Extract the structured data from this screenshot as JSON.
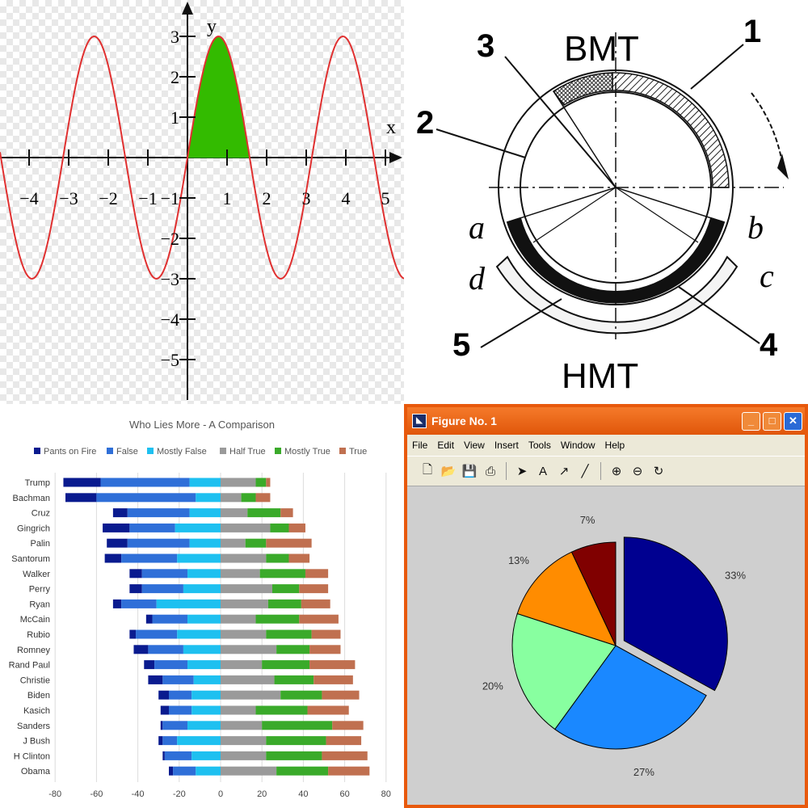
{
  "sine_panel": {
    "axis_x_label": "x",
    "axis_y_label": "y",
    "x_ticks": [
      "−4",
      "−3",
      "−2",
      "−1",
      "1",
      "2",
      "3",
      "4",
      "5"
    ],
    "y_ticks": [
      "3",
      "2",
      "1",
      "−1",
      "−2",
      "−3",
      "−4",
      "−5"
    ],
    "colors": {
      "curve": "#e03030",
      "fill": "#33bb00"
    }
  },
  "engine_panel": {
    "labels": {
      "n1": "1",
      "n2": "2",
      "n3": "3",
      "n4": "4",
      "n5": "5",
      "bmt": "BMT",
      "hmt": "HMT",
      "a": "a",
      "b": "b",
      "c": "c",
      "d": "d"
    }
  },
  "bar_panel": {
    "chart_data": {
      "type": "bar",
      "orientation": "horizontal-stacked-diverging",
      "title": "Who Lies More - A Comparison",
      "legend": [
        "Pants on Fire",
        "False",
        "Mostly False",
        "Half True",
        "Mostly True",
        "True"
      ],
      "colors": [
        "#0a1b8f",
        "#2f6fd8",
        "#1ec0f0",
        "#9a9a9a",
        "#3aaa2a",
        "#c07050"
      ],
      "x_ticks": [
        "-80",
        "-60",
        "-40",
        "-20",
        "0",
        "20",
        "40",
        "60",
        "80"
      ],
      "xlim": [
        -80,
        80
      ],
      "legend_position": "top",
      "categories": [
        "Trump",
        "Bachman",
        "Cruz",
        "Gingrich",
        "Palin",
        "Santorum",
        "Walker",
        "Perry",
        "Ryan",
        "McCain",
        "Rubio",
        "Romney",
        "Rand Paul",
        "Christie",
        "Biden",
        "Kasich",
        "Sanders",
        "J Bush",
        "H Clinton",
        "Obama"
      ],
      "series": [
        {
          "name": "Pants on Fire",
          "values": [
            18,
            15,
            7,
            13,
            10,
            8,
            6,
            6,
            4,
            3,
            3,
            7,
            5,
            7,
            5,
            4,
            1,
            2,
            1,
            2
          ]
        },
        {
          "name": "False",
          "values": [
            43,
            48,
            30,
            22,
            30,
            27,
            22,
            20,
            17,
            17,
            20,
            17,
            16,
            15,
            11,
            11,
            12,
            7,
            13,
            11
          ]
        },
        {
          "name": "Mostly False",
          "values": [
            15,
            12,
            15,
            22,
            15,
            21,
            16,
            18,
            31,
            16,
            21,
            18,
            16,
            13,
            14,
            14,
            16,
            21,
            14,
            12
          ]
        },
        {
          "name": "Half True",
          "values": [
            17,
            10,
            13,
            24,
            12,
            22,
            19,
            25,
            23,
            17,
            22,
            27,
            20,
            26,
            29,
            17,
            20,
            22,
            22,
            27
          ]
        },
        {
          "name": "Mostly True",
          "values": [
            5,
            7,
            16,
            9,
            10,
            11,
            22,
            13,
            16,
            21,
            22,
            16,
            23,
            19,
            20,
            25,
            34,
            29,
            27,
            25
          ]
        },
        {
          "name": "True",
          "values": [
            2,
            7,
            6,
            8,
            22,
            10,
            11,
            14,
            14,
            19,
            14,
            15,
            22,
            19,
            18,
            20,
            15,
            17,
            22,
            20
          ]
        }
      ]
    }
  },
  "figure_panel": {
    "window_title": "Figure No. 1",
    "menu": [
      "File",
      "Edit",
      "View",
      "Insert",
      "Tools",
      "Window",
      "Help"
    ],
    "toolbar_icons": [
      "new-file-icon",
      "open-folder-icon",
      "save-icon",
      "print-icon",
      "arrow-pointer-icon",
      "text-icon",
      "draw-arrow-icon",
      "draw-line-icon",
      "zoom-in-icon",
      "zoom-out-icon",
      "rotate-icon"
    ],
    "toolbar_glyphs": {
      "text": "A"
    },
    "chart_data": {
      "type": "pie",
      "values": [
        33,
        27,
        20,
        13,
        7
      ],
      "labels": [
        "33%",
        "27%",
        "20%",
        "13%",
        "7%"
      ],
      "colors": [
        "#000090",
        "#1a88ff",
        "#88ffa0",
        "#ff8c00",
        "#800000"
      ],
      "exploded": [
        true,
        false,
        false,
        false,
        false
      ]
    }
  }
}
